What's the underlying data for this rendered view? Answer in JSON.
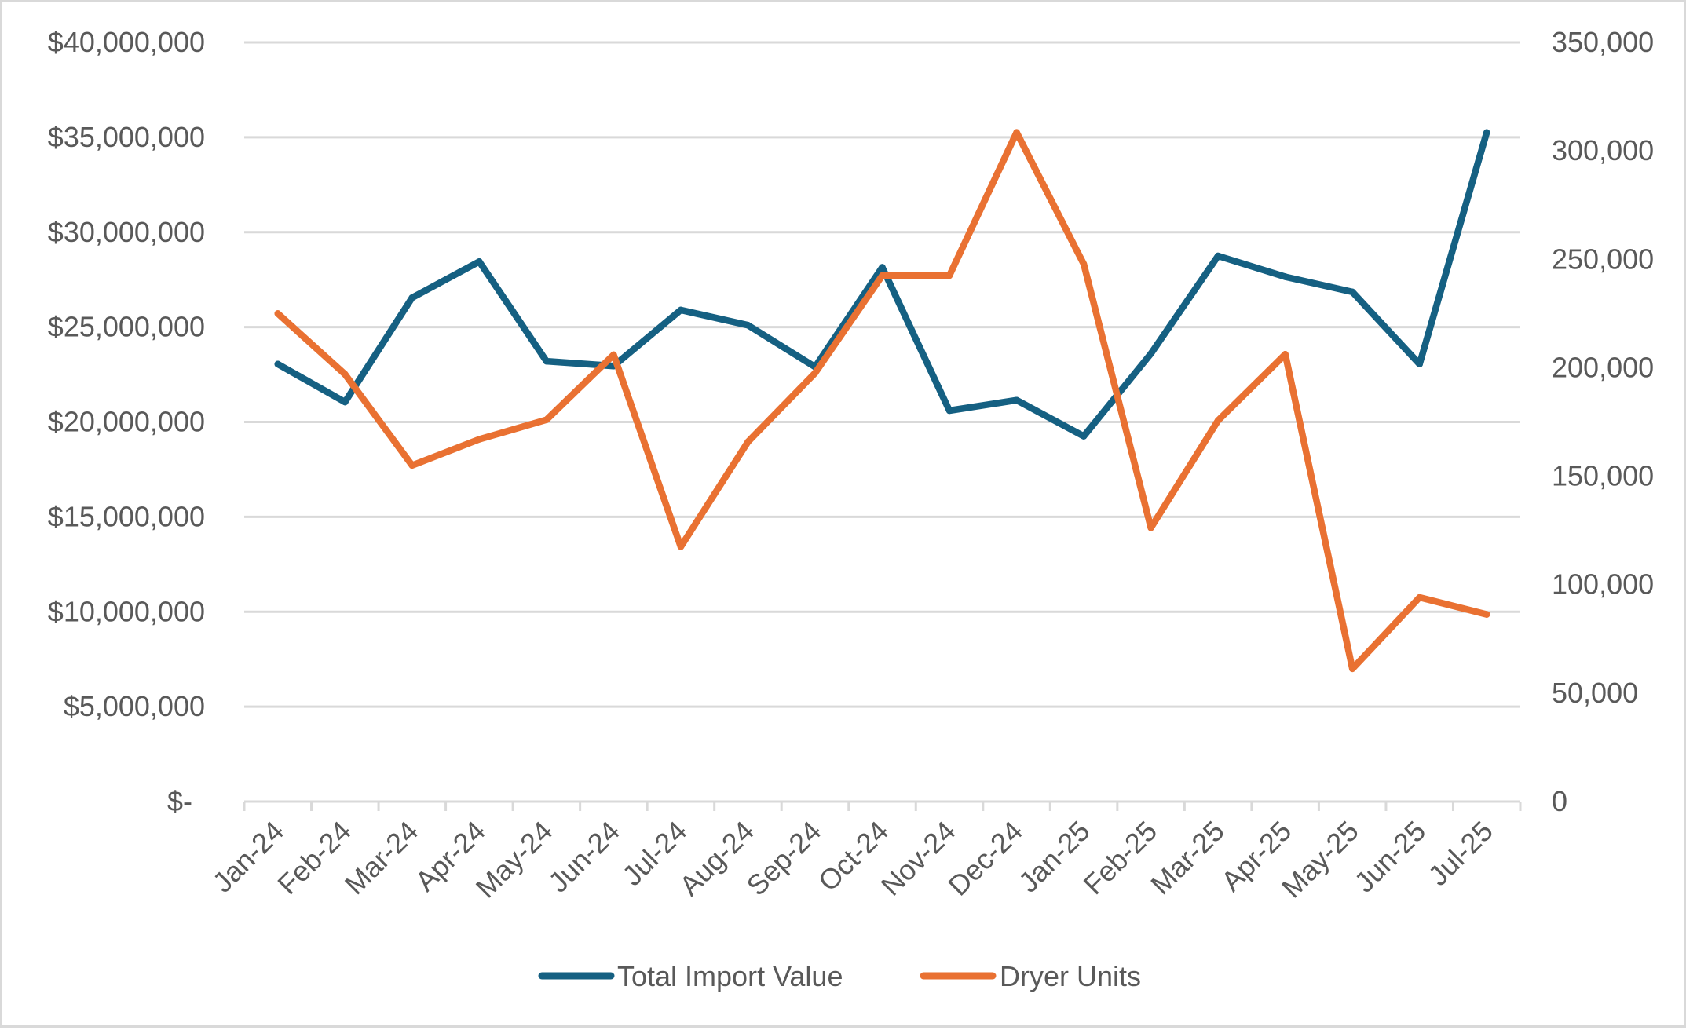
{
  "chart_data": {
    "type": "line",
    "title": "",
    "xlabel": "",
    "ylabel": "",
    "y2label": "",
    "categories": [
      "Jan-24",
      "Feb-24",
      "Mar-24",
      "Apr-24",
      "May-24",
      "Jun-24",
      "Jul-24",
      "Aug-24",
      "Sep-24",
      "Oct-24",
      "Nov-24",
      "Dec-24",
      "Jan-25",
      "Feb-25",
      "Mar-25",
      "Apr-25",
      "May-25",
      "Jun-25",
      "Jul-25"
    ],
    "series": [
      {
        "name": "Total Import Value",
        "axis": "left",
        "color": "#156082",
        "values": [
          23050000,
          21050000,
          26550000,
          28450000,
          23200000,
          22950000,
          25900000,
          25100000,
          22900000,
          28150000,
          20600000,
          21150000,
          19250000,
          23600000,
          28750000,
          27650000,
          26850000,
          23050000,
          35250000
        ]
      },
      {
        "name": "Dryer Units",
        "axis": "right",
        "color": "#E97132",
        "values": [
          225000,
          197000,
          155000,
          167000,
          176000,
          206000,
          117500,
          165800,
          197600,
          242500,
          242500,
          308500,
          247800,
          126200,
          175700,
          206200,
          61200,
          94100,
          86300
        ]
      }
    ],
    "ylim": [
      0,
      40000000
    ],
    "y2lim": [
      0,
      350000
    ],
    "yticks": [
      {
        "value": 0,
        "label": "$-"
      },
      {
        "value": 5000000,
        "label": "$5,000,000"
      },
      {
        "value": 10000000,
        "label": "$10,000,000"
      },
      {
        "value": 15000000,
        "label": "$15,000,000"
      },
      {
        "value": 20000000,
        "label": "$20,000,000"
      },
      {
        "value": 25000000,
        "label": "$25,000,000"
      },
      {
        "value": 30000000,
        "label": "$30,000,000"
      },
      {
        "value": 35000000,
        "label": "$35,000,000"
      },
      {
        "value": 40000000,
        "label": "$40,000,000"
      }
    ],
    "y2ticks": [
      {
        "value": 0,
        "label": "0"
      },
      {
        "value": 50000,
        "label": "50,000"
      },
      {
        "value": 100000,
        "label": "100,000"
      },
      {
        "value": 150000,
        "label": "150,000"
      },
      {
        "value": 200000,
        "label": "200,000"
      },
      {
        "value": 250000,
        "label": "250,000"
      },
      {
        "value": 300000,
        "label": "300,000"
      },
      {
        "value": 350000,
        "label": "350,000"
      }
    ],
    "grid": true,
    "legend_position": "bottom",
    "x_label_rotation": "-45deg"
  },
  "legend": {
    "items": [
      {
        "label": "Total Import Value",
        "color": "#156082"
      },
      {
        "label": "Dryer Units",
        "color": "#E97132"
      }
    ]
  },
  "style": {
    "gridline_color": "#d9d9d9",
    "text_color": "#595959"
  }
}
